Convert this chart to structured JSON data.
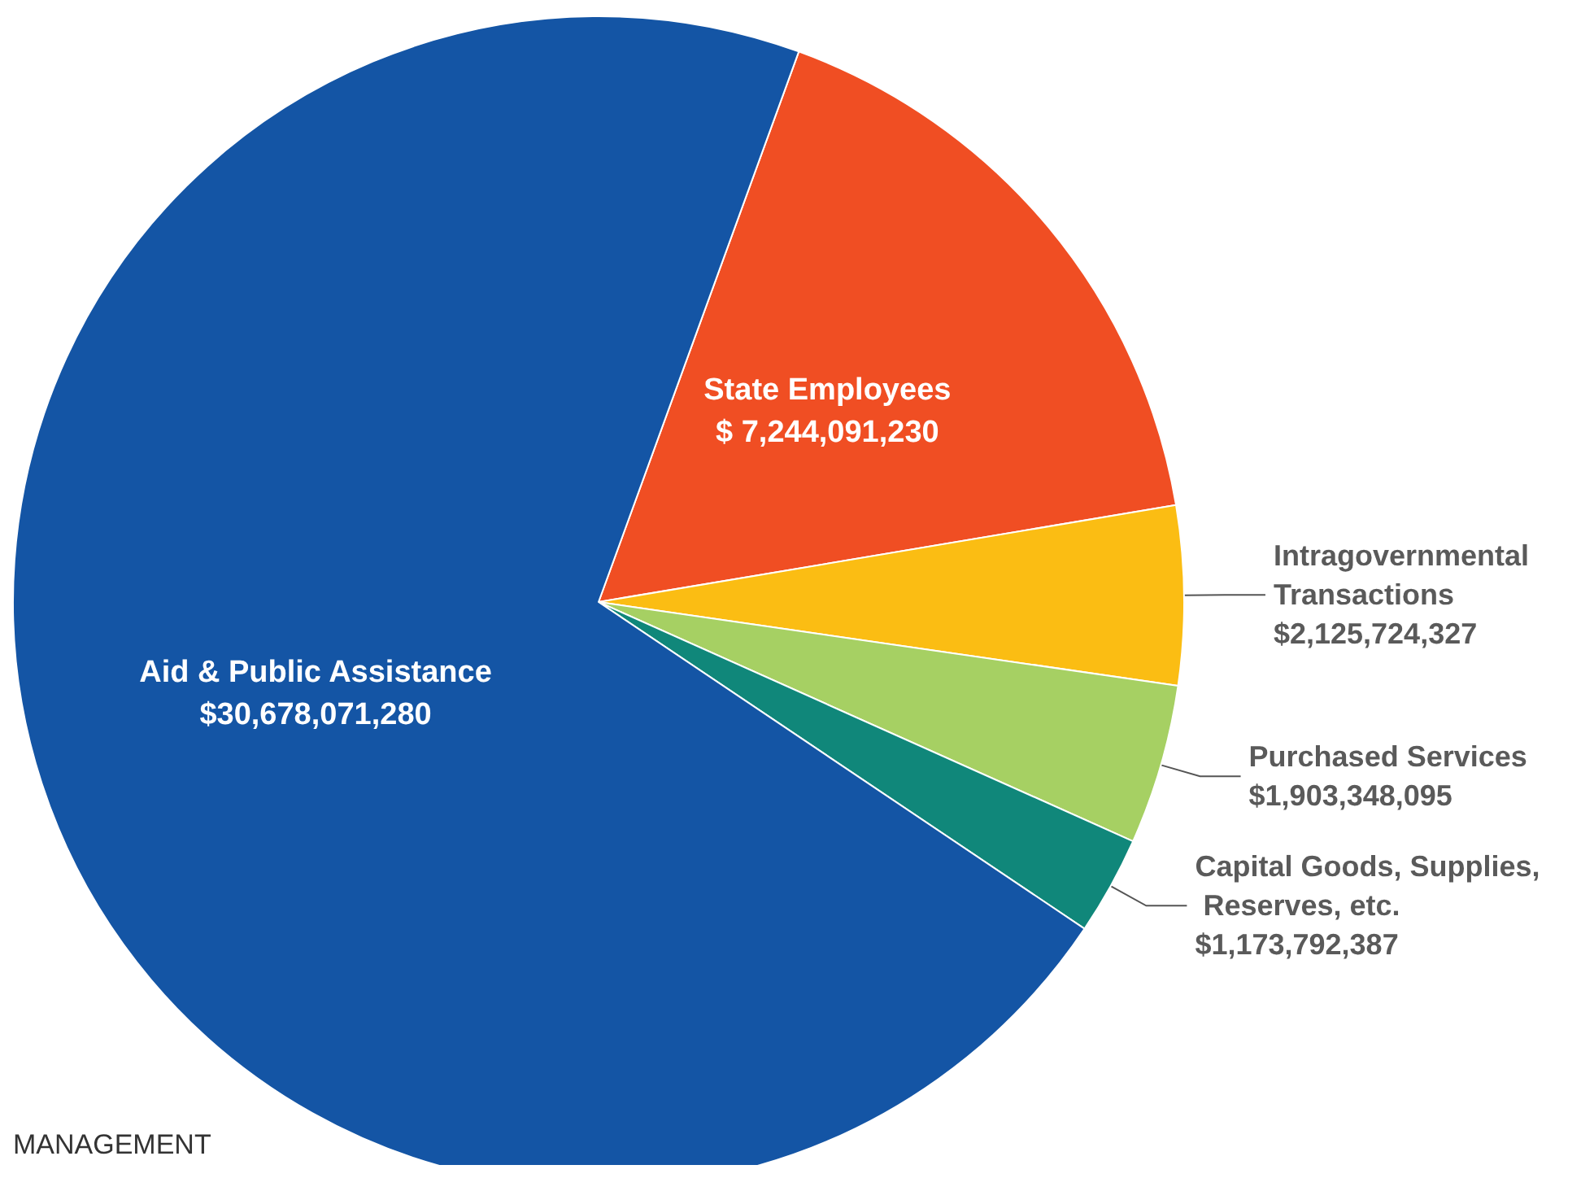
{
  "chart_data": {
    "type": "pie",
    "categories": [
      "State Employees",
      "Intragovernmental Transactions",
      "Purchased Services",
      "Capital Goods, Supplies, Reserves, etc.",
      "Aid & Public Assistance"
    ],
    "values": [
      7244091230,
      2125724327,
      1903348095,
      1173792387,
      30678071280
    ],
    "value_labels": [
      "$ 7,244,091,230",
      "$2,125,724,327",
      "$1,903,348,095",
      "$1,173,792,387",
      "$30,678,071,280"
    ],
    "colors": [
      "#f04e23",
      "#fbbd13",
      "#a6d063",
      "#10877a",
      "#1455a5"
    ],
    "legend": false,
    "annotations": [
      "MANAGEMENT"
    ]
  }
}
